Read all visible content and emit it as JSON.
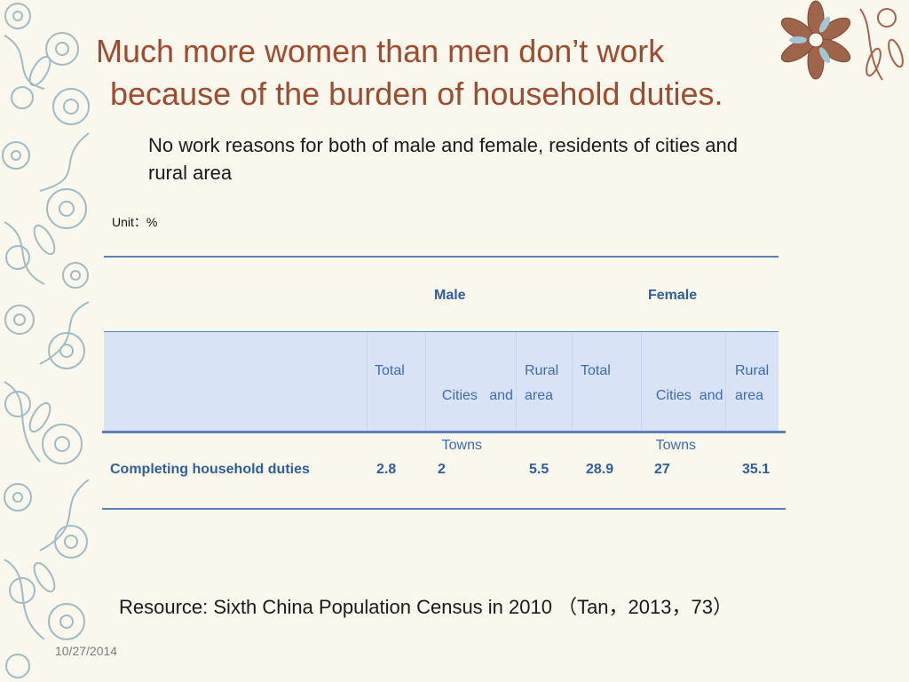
{
  "slide": {
    "title_line1": "Much more women than men don’t work",
    "title_line2": "because of the burden of household duties.",
    "subtitle": "No work reasons for both of male and female, residents of cities and rural area",
    "unit": "Unit：%",
    "source": "Resource: Sixth China Population Census in 2010 （Tan，2013，73）",
    "date": "10/27/2014"
  },
  "table": {
    "groups": {
      "male": "Male",
      "female": "Female"
    },
    "columns": {
      "male_total": "Total",
      "male_cities_1": "Cities   and",
      "male_cities_2": "Towns",
      "male_rural_1": "Rural",
      "male_rural_2": "area",
      "female_total": "Total",
      "female_cities_1": "Cities  and",
      "female_cities_2": "Towns",
      "female_rural_1": "Rural",
      "female_rural_2": "area"
    },
    "row": {
      "label": "Completing household duties",
      "male_total": "2.8",
      "male_cities": "2",
      "male_rural": "5.5",
      "female_total": "28.9",
      "female_cities": "27",
      "female_rural": "35.1"
    }
  },
  "colors": {
    "title": "#a04a2e",
    "table_text": "#2f5f9e",
    "header_band": "#d9e3f6",
    "rule": "#5b80bf",
    "ornament": "#9fbcc4",
    "flower_brown": "#a0644a"
  }
}
